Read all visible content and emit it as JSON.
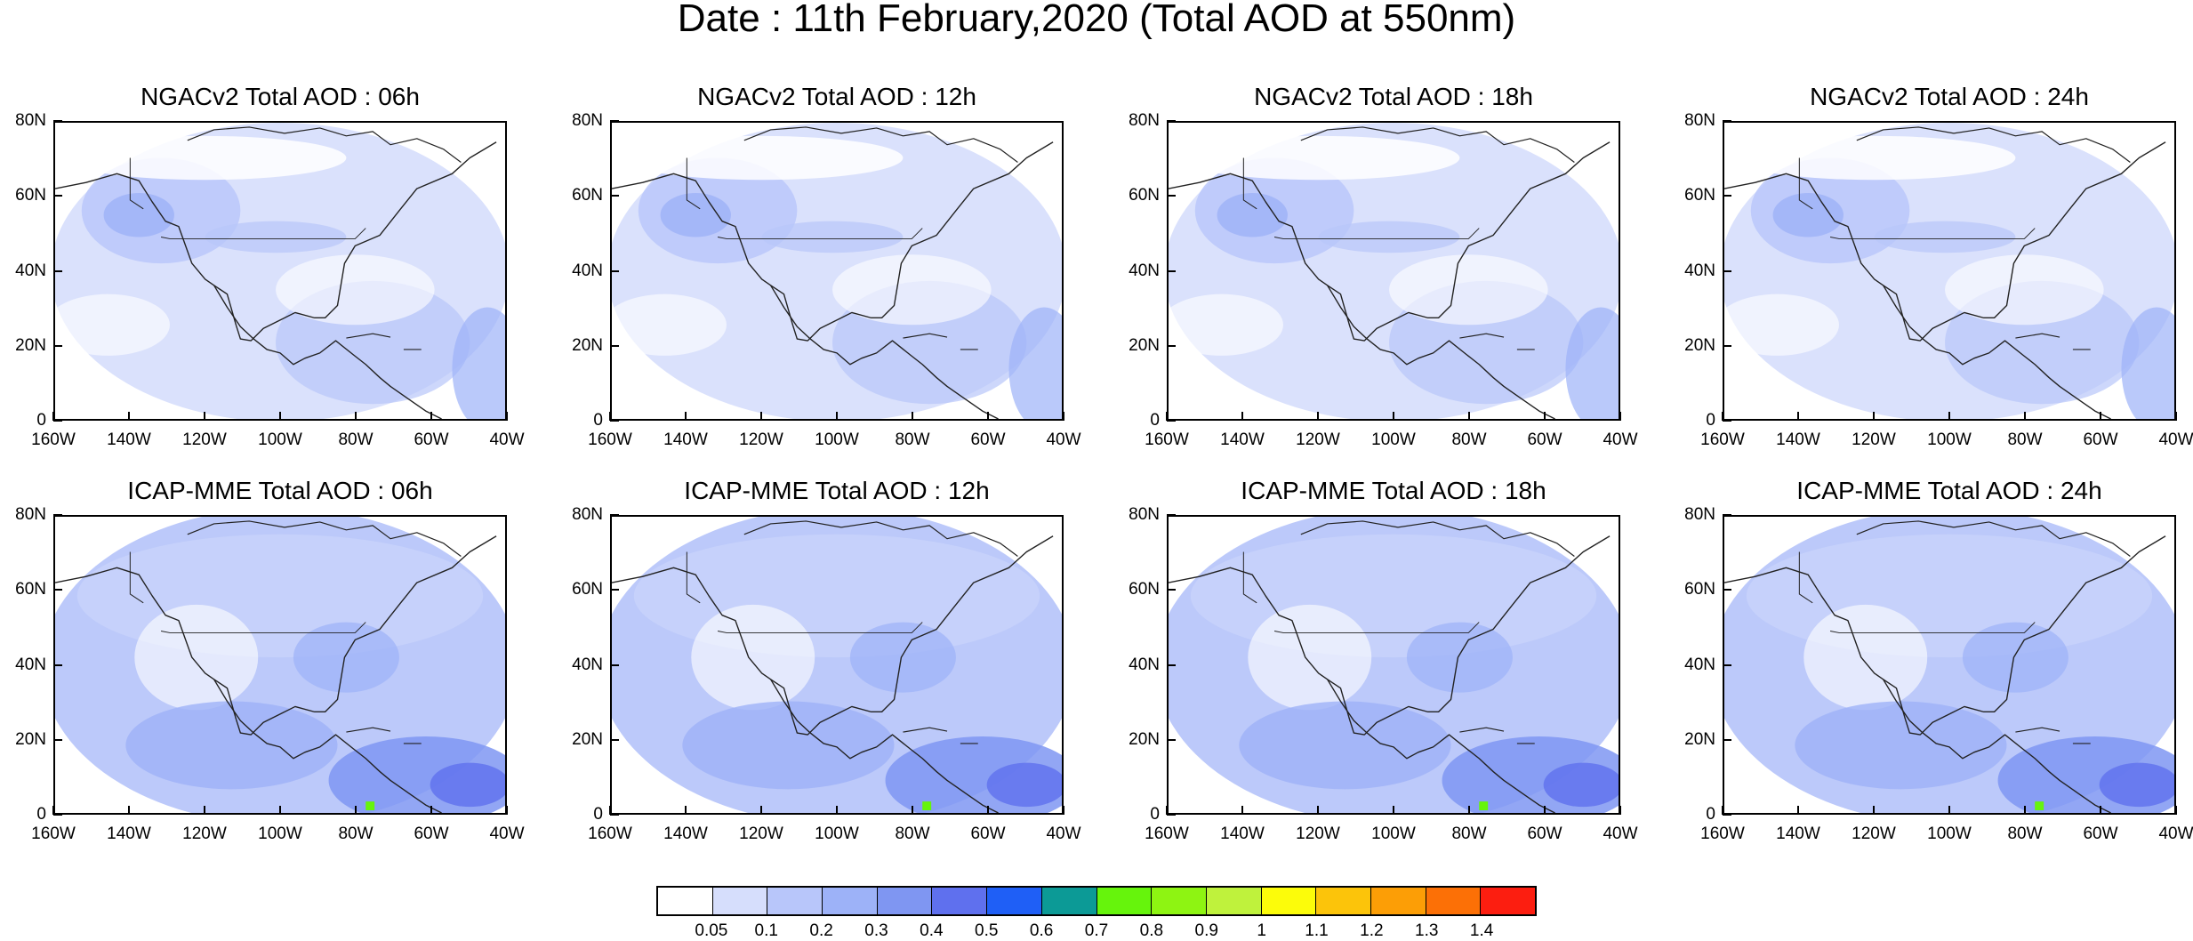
{
  "title": "Date : 11th February,2020 (Total AOD at 550nm)",
  "panels": [
    {
      "title": "NGACv2 Total AOD : 06h",
      "model": "NGACv2"
    },
    {
      "title": "NGACv2 Total AOD : 12h",
      "model": "NGACv2"
    },
    {
      "title": "NGACv2 Total AOD : 18h",
      "model": "NGACv2"
    },
    {
      "title": "NGACv2 Total AOD : 24h",
      "model": "NGACv2"
    },
    {
      "title": "ICAP-MME Total AOD : 06h",
      "model": "ICAP-MME"
    },
    {
      "title": "ICAP-MME Total AOD : 12h",
      "model": "ICAP-MME"
    },
    {
      "title": "ICAP-MME Total AOD : 18h",
      "model": "ICAP-MME"
    },
    {
      "title": "ICAP-MME Total AOD : 24h",
      "model": "ICAP-MME"
    }
  ],
  "lat_ticks": [
    "80N",
    "60N",
    "40N",
    "20N",
    "0"
  ],
  "lon_ticks": [
    "160W",
    "140W",
    "120W",
    "100W",
    "80W",
    "60W",
    "40W"
  ],
  "colorbar": {
    "labels": [
      "0.05",
      "0.1",
      "0.2",
      "0.3",
      "0.4",
      "0.5",
      "0.6",
      "0.7",
      "0.8",
      "0.9",
      "1",
      "1.1",
      "1.2",
      "1.3",
      "1.4"
    ],
    "colors": [
      "#ffffff",
      "#d6defc",
      "#b8c6fa",
      "#9db2f8",
      "#7f96f2",
      "#5f70ee",
      "#1f5ff6",
      "#0c9a96",
      "#66f40c",
      "#8ef412",
      "#bff23c",
      "#fcfc0a",
      "#fcc40a",
      "#fc9e06",
      "#fc7006",
      "#fc1e10"
    ]
  }
}
